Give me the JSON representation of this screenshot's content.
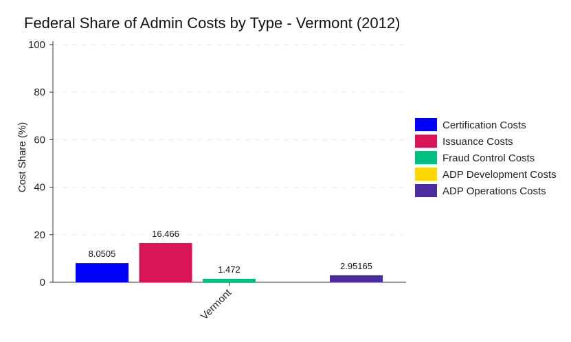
{
  "chart_data": {
    "type": "bar",
    "title": "Federal Share of Admin Costs by Type - Vermont (2012)",
    "xlabel": "",
    "ylabel": "Cost Share (%)",
    "categories": [
      "Vermont"
    ],
    "ylim": [
      0,
      100
    ],
    "yticks": [
      0,
      20,
      40,
      60,
      80,
      100
    ],
    "grid": true,
    "legend_position": "right",
    "series": [
      {
        "name": "Certification Costs",
        "values": [
          8.0505
        ],
        "label": "8.0505",
        "color": "#0000ff"
      },
      {
        "name": "Issuance Costs",
        "values": [
          16.466
        ],
        "label": "16.466",
        "color": "#d81657"
      },
      {
        "name": "Fraud Control Costs",
        "values": [
          1.472
        ],
        "label": "1.472",
        "color": "#00bf80"
      },
      {
        "name": "ADP Development Costs",
        "values": [
          0
        ],
        "label": "",
        "color": "#ffd700"
      },
      {
        "name": "ADP Operations Costs",
        "values": [
          2.95165
        ],
        "label": "2.95165",
        "color": "#4b2d9f"
      }
    ]
  }
}
